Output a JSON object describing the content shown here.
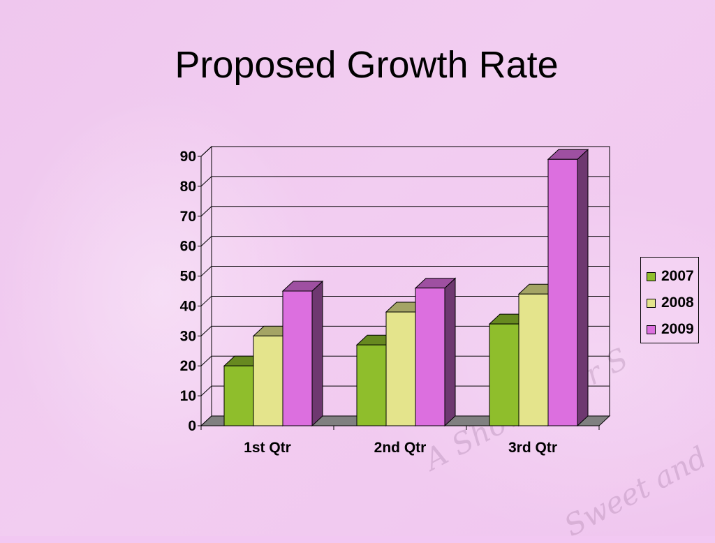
{
  "slide": {
    "title": "Proposed Growth Rate",
    "watermark_line1": "A Shower for S",
    "watermark_line2": "Sweet and"
  },
  "chart_data": {
    "type": "bar",
    "title": "Proposed Growth Rate",
    "categories": [
      "1st Qtr",
      "2nd Qtr",
      "3rd Qtr"
    ],
    "series": [
      {
        "name": "2007",
        "values": [
          20,
          27,
          34
        ],
        "color": "#8fbe2c"
      },
      {
        "name": "2008",
        "values": [
          30,
          38,
          44
        ],
        "color": "#e4e48c"
      },
      {
        "name": "2009",
        "values": [
          45,
          46,
          89
        ],
        "color": "#dc6fdf"
      }
    ],
    "ylim": [
      0,
      90
    ],
    "yticks": [
      0,
      10,
      20,
      30,
      40,
      50,
      60,
      70,
      80,
      90
    ],
    "grid": true,
    "legend_position": "right",
    "three_d": true,
    "xlabel": "",
    "ylabel": ""
  }
}
